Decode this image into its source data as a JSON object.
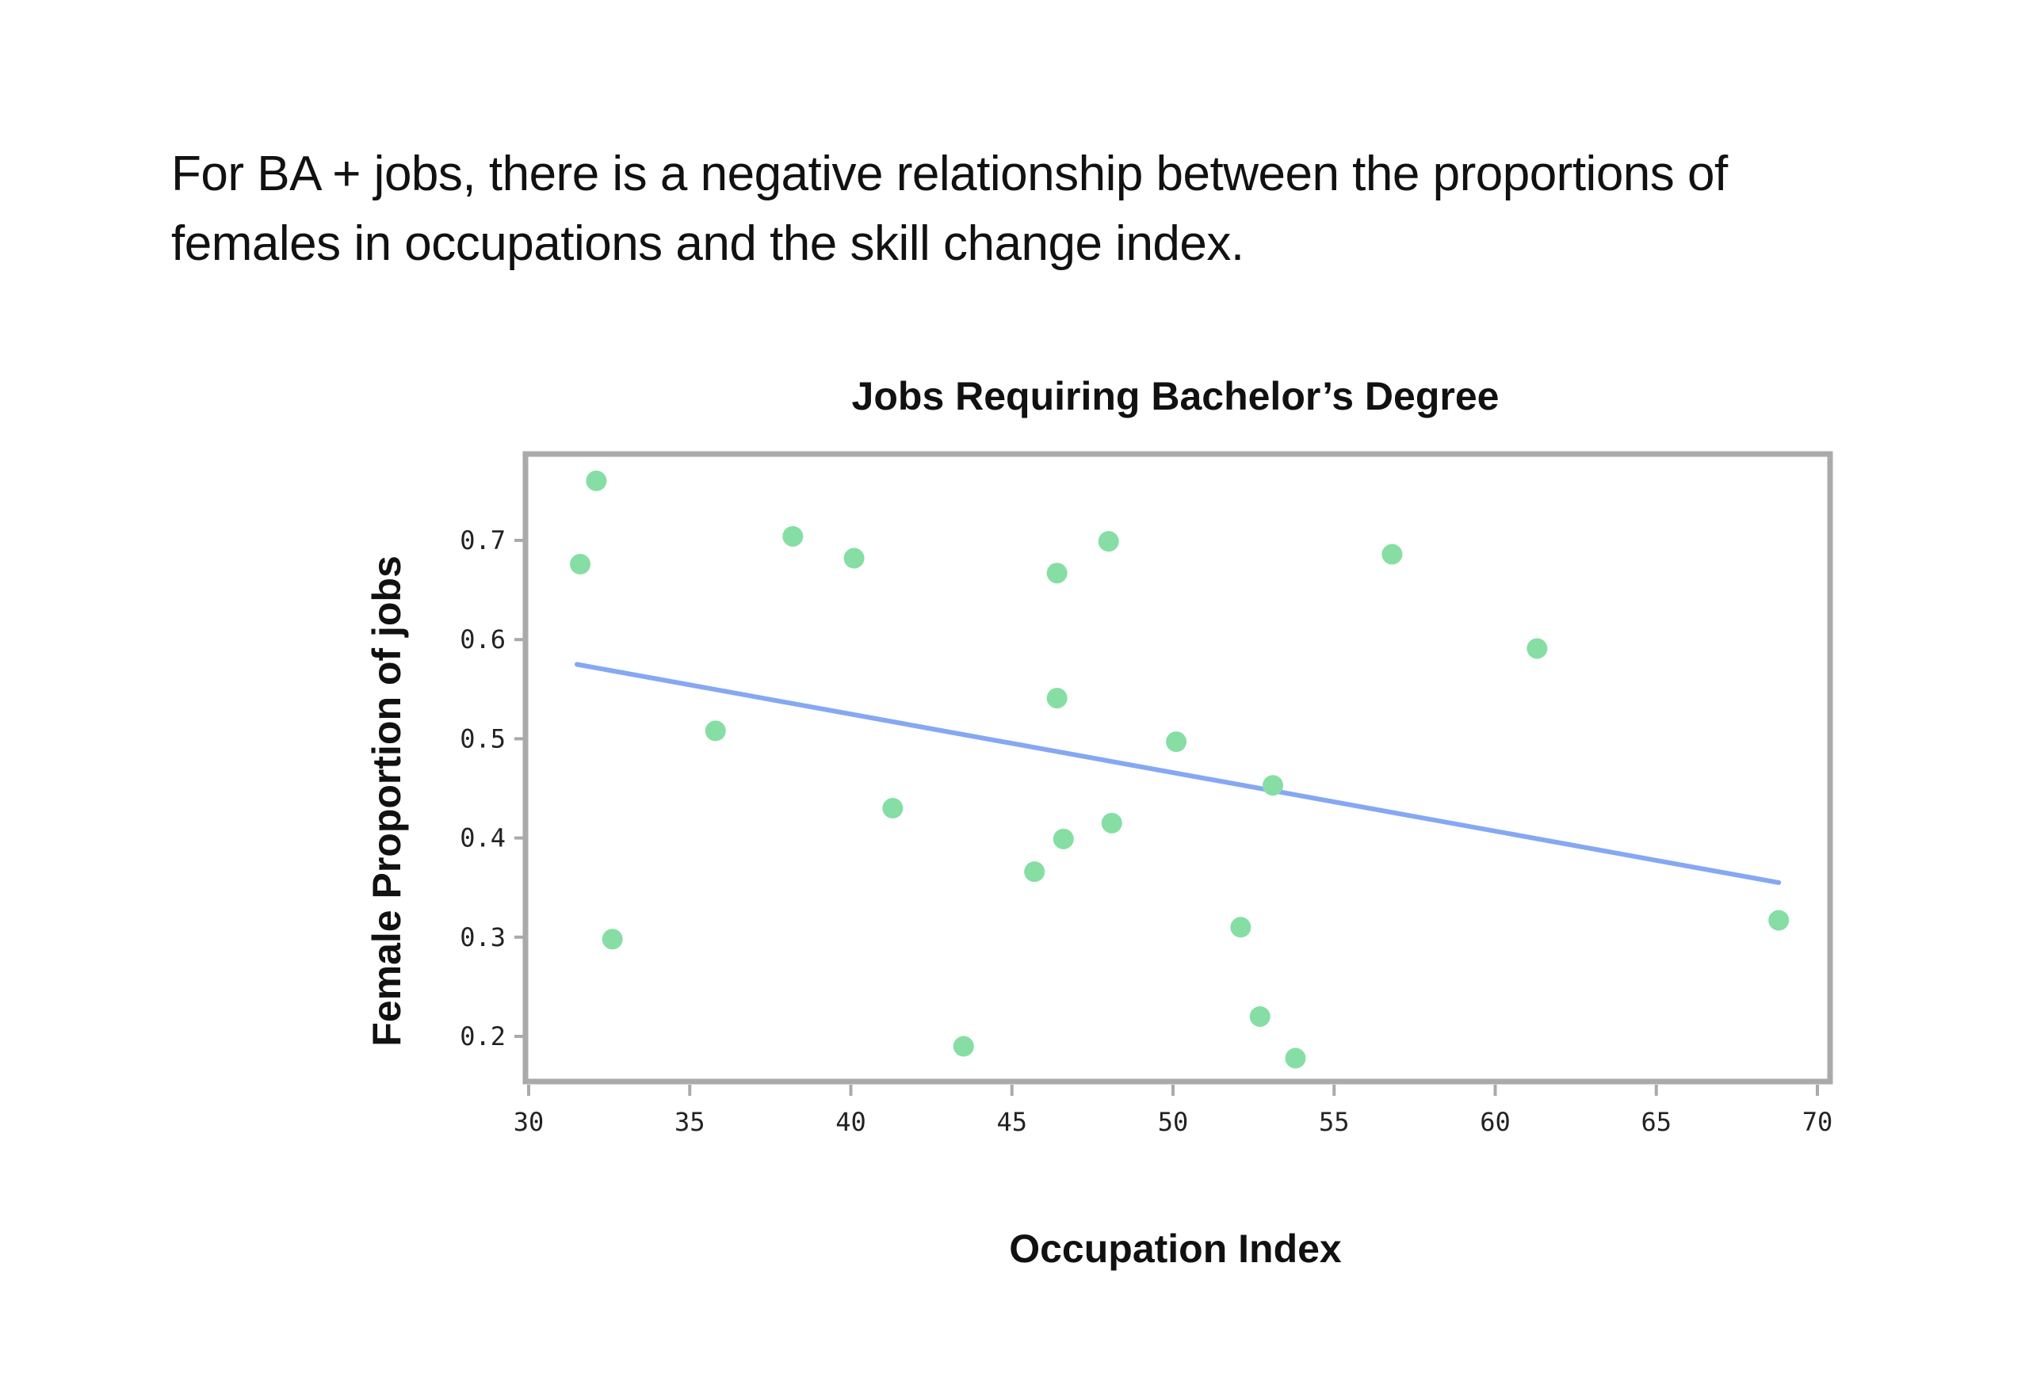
{
  "headline": "For BA + jobs, there is a negative relationship between the proportions of females in occupations and the skill change index.",
  "colors": {
    "points": "#86dea4",
    "trendline": "#86a8f2"
  },
  "chart_data": {
    "type": "scatter",
    "title": "Jobs Requiring Bachelor’s Degree",
    "xlabel": "Occupation Index",
    "ylabel": "Female Proportion of jobs",
    "xlim": [
      30,
      70
    ],
    "ylim": [
      0.15,
      0.79
    ],
    "x_ticks": [
      "30",
      "35",
      "40",
      "45",
      "50",
      "55",
      "60",
      "65",
      "70"
    ],
    "y_ticks": [
      "0.2",
      "0.3",
      "0.4",
      "0.5",
      "0.6",
      "0.7"
    ],
    "grid": false,
    "points": [
      {
        "x": 32.1,
        "y": 0.76
      },
      {
        "x": 31.6,
        "y": 0.676
      },
      {
        "x": 32.6,
        "y": 0.298
      },
      {
        "x": 35.8,
        "y": 0.508
      },
      {
        "x": 38.2,
        "y": 0.704
      },
      {
        "x": 40.1,
        "y": 0.682
      },
      {
        "x": 41.3,
        "y": 0.43
      },
      {
        "x": 43.5,
        "y": 0.19
      },
      {
        "x": 45.7,
        "y": 0.366
      },
      {
        "x": 46.4,
        "y": 0.667
      },
      {
        "x": 46.4,
        "y": 0.541
      },
      {
        "x": 46.6,
        "y": 0.399
      },
      {
        "x": 48.0,
        "y": 0.699
      },
      {
        "x": 48.1,
        "y": 0.415
      },
      {
        "x": 50.1,
        "y": 0.497
      },
      {
        "x": 52.1,
        "y": 0.31
      },
      {
        "x": 52.7,
        "y": 0.22
      },
      {
        "x": 53.1,
        "y": 0.453
      },
      {
        "x": 53.8,
        "y": 0.178
      },
      {
        "x": 56.8,
        "y": 0.686
      },
      {
        "x": 61.3,
        "y": 0.591
      },
      {
        "x": 68.8,
        "y": 0.317
      }
    ],
    "trendline": {
      "x": [
        31.5,
        68.8
      ],
      "y": [
        0.575,
        0.355
      ]
    }
  }
}
